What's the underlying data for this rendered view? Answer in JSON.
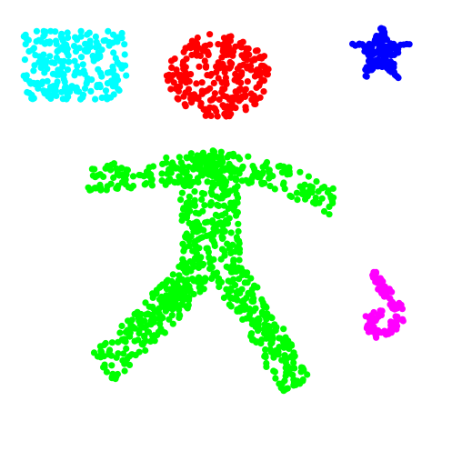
{
  "scene": {
    "background": "#ffffff",
    "shapes": [
      {
        "name": "cyan-rectangle-cluster",
        "shape": "rectangle",
        "color": "#00ffff"
      },
      {
        "name": "red-circle-cluster",
        "shape": "circle",
        "color": "#ff0000"
      },
      {
        "name": "blue-star-cluster",
        "shape": "star",
        "color": "#0000ff"
      },
      {
        "name": "green-stick-figure-cluster",
        "shape": "stick-figure",
        "color": "#00ff00"
      },
      {
        "name": "magenta-squiggle-cluster",
        "shape": "squiggle",
        "color": "#ff00ff"
      }
    ]
  }
}
